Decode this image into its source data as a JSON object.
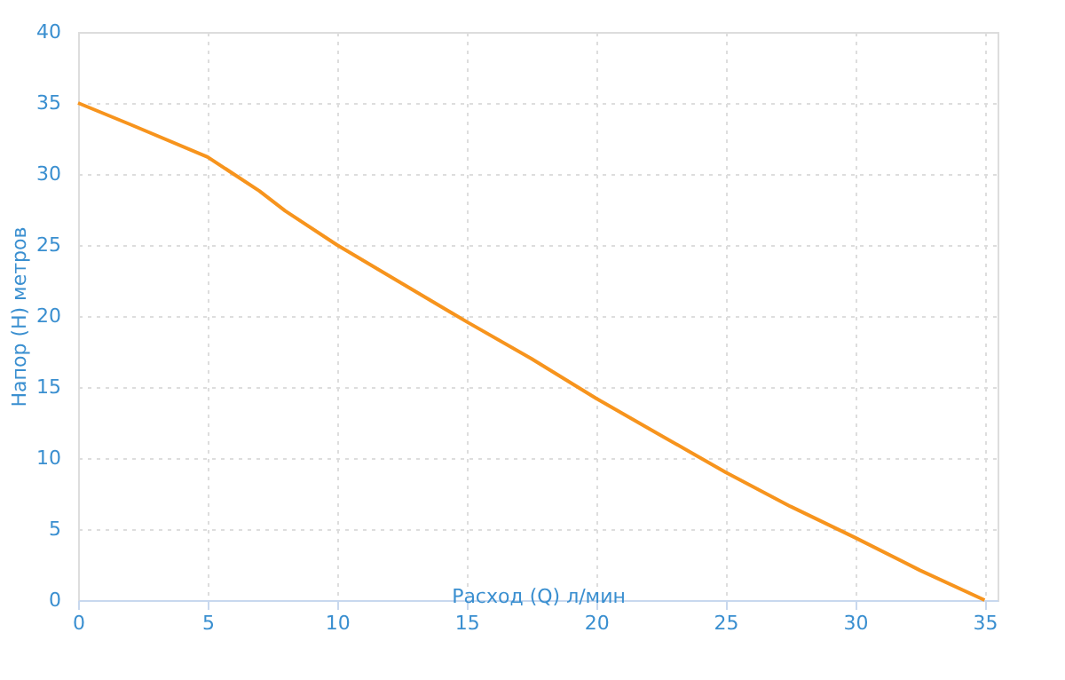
{
  "chart_data": {
    "type": "line",
    "xlabel": "Расход (Q) л/мин",
    "ylabel": "Напор (H) метров",
    "x": [
      0,
      2,
      5,
      7,
      8,
      10,
      12.5,
      15,
      17.5,
      20,
      22.5,
      25,
      27.5,
      30,
      32.5,
      35
    ],
    "series": [
      {
        "color": "#f7941d",
        "values": [
          35,
          33.5,
          31.2,
          28.8,
          27.4,
          25,
          22.3,
          19.6,
          17,
          14.2,
          11.6,
          9,
          6.6,
          4.4,
          2.1,
          0
        ]
      }
    ],
    "xlim": [
      0,
      35.5
    ],
    "xticks": [
      0,
      5,
      10,
      15,
      20,
      25,
      30,
      35
    ],
    "ylim": [
      0,
      40
    ],
    "yticks": [
      0,
      5,
      10,
      15,
      20,
      25,
      30,
      35,
      40
    ],
    "grid": true,
    "marker": "none",
    "line_style": "solid"
  }
}
